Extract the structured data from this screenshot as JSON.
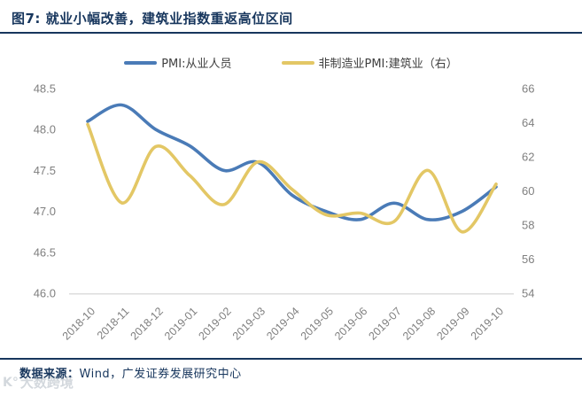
{
  "header": {
    "title": "图7:  就业小幅改善，建筑业指数重返高位区间"
  },
  "legend": [
    {
      "label": "PMI:从业人员",
      "color": "#4a7bb7"
    },
    {
      "label": "非制造业PMI:建筑业（右）",
      "color": "#e3c765"
    }
  ],
  "footer": {
    "label": "数据来源：",
    "source": "Wind，广发证券发展研究中心"
  },
  "watermark": {
    "icon": "K°",
    "text": "大数跨境"
  },
  "colors": {
    "navy": "#17365d",
    "axis_text": "#7f7f7f",
    "axis_line": "#dcdcdc",
    "blue_line": "#4a7bb7",
    "yellow_line": "#e3c765"
  },
  "chart_data": {
    "type": "line",
    "title": "",
    "categories": [
      "2018-10",
      "2018-11",
      "2018-12",
      "2019-01",
      "2019-02",
      "2019-03",
      "2019-04",
      "2019-05",
      "2019-06",
      "2019-07",
      "2019-08",
      "2019-09",
      "2019-10"
    ],
    "series": [
      {
        "name": "PMI:从业人员",
        "axis": "left",
        "color": "#4a7bb7",
        "values": [
          48.1,
          48.3,
          48.0,
          47.8,
          47.5,
          47.6,
          47.2,
          47.0,
          46.9,
          47.1,
          46.9,
          47.0,
          47.3
        ]
      },
      {
        "name": "非制造业PMI:建筑业（右）",
        "axis": "right",
        "color": "#e3c765",
        "values": [
          63.9,
          59.3,
          62.6,
          60.9,
          59.2,
          61.7,
          60.1,
          58.6,
          58.7,
          58.2,
          61.2,
          57.6,
          60.4
        ]
      }
    ],
    "left_axis": {
      "min": 46.0,
      "max": 48.5,
      "step": 0.5,
      "decimals": 1
    },
    "right_axis": {
      "min": 54,
      "max": 66,
      "step": 2,
      "decimals": 0
    },
    "grid": false,
    "smooth": true,
    "legend_position": "top"
  }
}
